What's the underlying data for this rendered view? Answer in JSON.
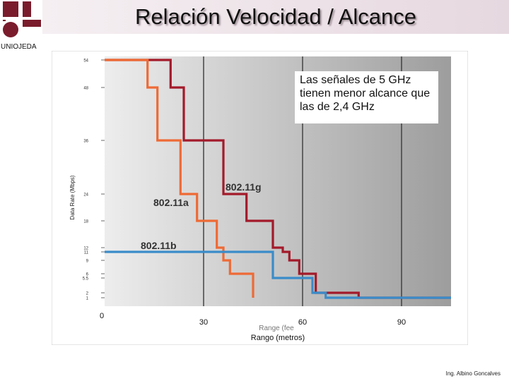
{
  "title": "Relación Velocidad / Alcance",
  "logo_text": "UNIOJEDA",
  "note": "Las señales de 5 GHz tienen menor alcance que las de 2,4 GHz",
  "footer": "Ing. Albino Goncalves",
  "chart_data": {
    "type": "line",
    "xlabel": "Rango (metros)",
    "xlabel_faded": "Range (fee",
    "ylabel": "Data Rate (Mbps)",
    "x_ticks": [
      0,
      30,
      60,
      90
    ],
    "y_ticks": [
      1,
      2,
      5.5,
      6,
      9,
      11,
      12,
      18,
      24,
      36,
      48,
      54
    ],
    "xlim": [
      0,
      105
    ],
    "ylim_ticks": [
      1,
      54
    ],
    "series": [
      {
        "name": "802.11g",
        "color": "#a31a2a",
        "points": [
          [
            0,
            54
          ],
          [
            20,
            54
          ],
          [
            20,
            48
          ],
          [
            24,
            48
          ],
          [
            24,
            36
          ],
          [
            36,
            36
          ],
          [
            36,
            24
          ],
          [
            43,
            24
          ],
          [
            43,
            18
          ],
          [
            51,
            18
          ],
          [
            51,
            12
          ],
          [
            54,
            12
          ],
          [
            54,
            11
          ],
          [
            56,
            11
          ],
          [
            56,
            9
          ],
          [
            59,
            9
          ],
          [
            59,
            6
          ],
          [
            64,
            6
          ],
          [
            64,
            2
          ],
          [
            77,
            2
          ],
          [
            77,
            1
          ],
          [
            105,
            1
          ]
        ]
      },
      {
        "name": "802.11a",
        "color": "#ee6a35",
        "points": [
          [
            0,
            54
          ],
          [
            13,
            54
          ],
          [
            13,
            48
          ],
          [
            16,
            48
          ],
          [
            16,
            36
          ],
          [
            23,
            36
          ],
          [
            23,
            24
          ],
          [
            28,
            24
          ],
          [
            28,
            18
          ],
          [
            34,
            18
          ],
          [
            34,
            12
          ],
          [
            36,
            12
          ],
          [
            36,
            9
          ],
          [
            38,
            9
          ],
          [
            38,
            6
          ],
          [
            45,
            6
          ],
          [
            45,
            1
          ]
        ]
      },
      {
        "name": "802.11b",
        "color": "#3a8cc9",
        "points": [
          [
            0,
            11
          ],
          [
            51,
            11
          ],
          [
            51,
            5.5
          ],
          [
            63,
            5.5
          ],
          [
            63,
            2
          ],
          [
            67,
            2
          ],
          [
            67,
            1
          ],
          [
            105,
            1
          ]
        ]
      }
    ]
  }
}
